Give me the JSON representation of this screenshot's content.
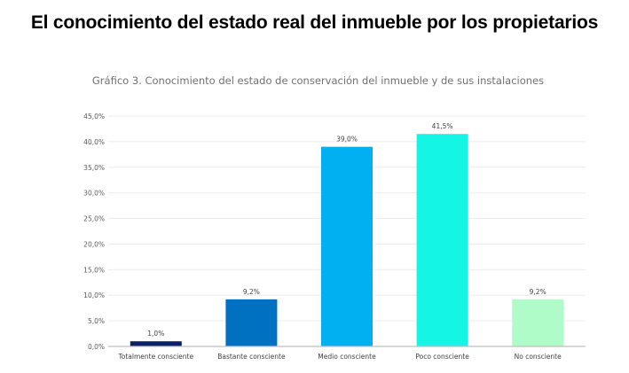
{
  "page_title": "El conocimiento del estado real del inmueble por los propietarios",
  "chart_data": {
    "type": "bar",
    "title": "Gráfico 3. Conocimiento del estado de conservación del inmueble y de sus instalaciones",
    "xlabel": "",
    "ylabel": "",
    "categories": [
      "Totalmente consciente",
      "Bastante consciente",
      "Medio consciente",
      "Poco consciente",
      "No consciente"
    ],
    "values": [
      1.0,
      9.2,
      39.0,
      41.5,
      9.2
    ],
    "value_labels": [
      "1,0%",
      "9,2%",
      "39,0%",
      "41,5%",
      "9,2%"
    ],
    "colors": [
      "#0a1f66",
      "#0070c0",
      "#00b0f0",
      "#14f5e6",
      "#b0fcc8"
    ],
    "ylim": [
      0,
      45
    ],
    "yticks": [
      0,
      5,
      10,
      15,
      20,
      25,
      30,
      35,
      40,
      45
    ],
    "ytick_labels": [
      "0,0%",
      "5,0%",
      "10,0%",
      "15,0%",
      "20,0%",
      "25,0%",
      "30,0%",
      "35,0%",
      "40,0%",
      "45,0%"
    ],
    "grid": true,
    "legend": "none"
  }
}
